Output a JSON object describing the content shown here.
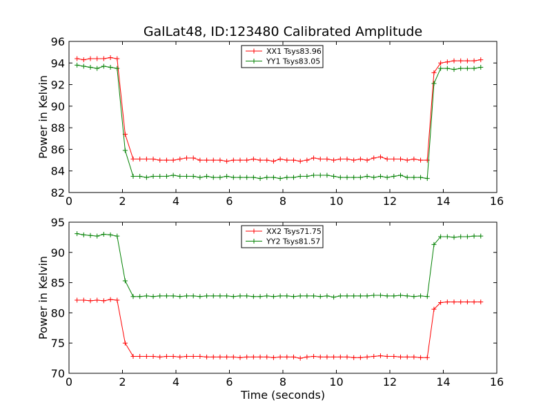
{
  "chart_data": [
    {
      "type": "line",
      "title": "GalLat48, ID:123480 Calibrated Amplitude",
      "xlabel": "",
      "ylabel": "Power in Kelvin",
      "xlim": [
        0,
        16
      ],
      "ylim": [
        82,
        96
      ],
      "xticks": [
        0,
        2,
        4,
        6,
        8,
        10,
        12,
        14,
        16
      ],
      "xtick_labels": [
        "0",
        "2",
        "4",
        "6",
        "8",
        "10",
        "12",
        "14",
        "16"
      ],
      "yticks": [
        82,
        84,
        86,
        88,
        90,
        92,
        94,
        96
      ],
      "ytick_labels": [
        "82",
        "84",
        "86",
        "88",
        "90",
        "92",
        "94",
        "96"
      ],
      "legend_position": "top-center",
      "x": [
        0.3,
        0.55,
        0.8,
        1.05,
        1.3,
        1.55,
        1.8,
        2.1,
        2.4,
        2.65,
        2.9,
        3.15,
        3.4,
        3.65,
        3.9,
        4.15,
        4.4,
        4.65,
        4.9,
        5.15,
        5.4,
        5.65,
        5.9,
        6.15,
        6.4,
        6.65,
        6.9,
        7.15,
        7.4,
        7.65,
        7.9,
        8.15,
        8.4,
        8.65,
        8.9,
        9.15,
        9.4,
        9.65,
        9.9,
        10.15,
        10.4,
        10.65,
        10.9,
        11.15,
        11.4,
        11.65,
        11.9,
        12.15,
        12.4,
        12.65,
        12.9,
        13.15,
        13.4,
        13.65,
        13.9,
        14.15,
        14.4,
        14.65,
        14.9,
        15.15,
        15.4
      ],
      "series": [
        {
          "name": "XX1 Tsys83.96",
          "color": "#ff0000",
          "values": [
            94.4,
            94.3,
            94.4,
            94.4,
            94.4,
            94.5,
            94.4,
            87.4,
            85.1,
            85.1,
            85.1,
            85.1,
            85.0,
            85.0,
            85.0,
            85.1,
            85.2,
            85.2,
            85.0,
            85.0,
            85.0,
            85.0,
            84.9,
            85.0,
            85.0,
            85.0,
            85.1,
            85.0,
            85.0,
            84.9,
            85.1,
            85.0,
            85.0,
            84.9,
            85.0,
            85.2,
            85.1,
            85.1,
            85.0,
            85.1,
            85.1,
            85.0,
            85.1,
            85.0,
            85.2,
            85.3,
            85.1,
            85.1,
            85.1,
            85.0,
            85.1,
            85.0,
            85.0,
            93.1,
            94.0,
            94.1,
            94.2,
            94.2,
            94.2,
            94.2,
            94.3
          ]
        },
        {
          "name": "YY1 Tsys83.05",
          "color": "#008000",
          "values": [
            93.8,
            93.7,
            93.6,
            93.5,
            93.7,
            93.6,
            93.5,
            85.9,
            83.5,
            83.5,
            83.4,
            83.5,
            83.5,
            83.5,
            83.6,
            83.5,
            83.5,
            83.5,
            83.4,
            83.5,
            83.4,
            83.4,
            83.5,
            83.4,
            83.4,
            83.4,
            83.4,
            83.3,
            83.4,
            83.4,
            83.3,
            83.4,
            83.4,
            83.5,
            83.5,
            83.6,
            83.6,
            83.6,
            83.5,
            83.4,
            83.4,
            83.4,
            83.4,
            83.5,
            83.4,
            83.5,
            83.4,
            83.5,
            83.6,
            83.4,
            83.4,
            83.4,
            83.3,
            92.1,
            93.5,
            93.5,
            93.4,
            93.5,
            93.5,
            93.5,
            93.6
          ]
        }
      ]
    },
    {
      "type": "line",
      "title": "",
      "xlabel": "Time (seconds)",
      "ylabel": "Power in Kelvin",
      "xlim": [
        0,
        16
      ],
      "ylim": [
        70,
        95
      ],
      "xticks": [
        0,
        2,
        4,
        6,
        8,
        10,
        12,
        14,
        16
      ],
      "xtick_labels": [
        "0",
        "2",
        "4",
        "6",
        "8",
        "10",
        "12",
        "14",
        "16"
      ],
      "yticks": [
        70,
        75,
        80,
        85,
        90,
        95
      ],
      "ytick_labels": [
        "70",
        "75",
        "80",
        "85",
        "90",
        "95"
      ],
      "legend_position": "top-center",
      "x": [
        0.3,
        0.55,
        0.8,
        1.05,
        1.3,
        1.55,
        1.8,
        2.1,
        2.4,
        2.65,
        2.9,
        3.15,
        3.4,
        3.65,
        3.9,
        4.15,
        4.4,
        4.65,
        4.9,
        5.15,
        5.4,
        5.65,
        5.9,
        6.15,
        6.4,
        6.65,
        6.9,
        7.15,
        7.4,
        7.65,
        7.9,
        8.15,
        8.4,
        8.65,
        8.9,
        9.15,
        9.4,
        9.65,
        9.9,
        10.15,
        10.4,
        10.65,
        10.9,
        11.15,
        11.4,
        11.65,
        11.9,
        12.15,
        12.4,
        12.65,
        12.9,
        13.15,
        13.4,
        13.65,
        13.9,
        14.15,
        14.4,
        14.65,
        14.9,
        15.15,
        15.4
      ],
      "series": [
        {
          "name": "XX2 Tsys71.75",
          "color": "#ff0000",
          "values": [
            82.1,
            82.1,
            82.0,
            82.1,
            82.0,
            82.2,
            82.1,
            75.0,
            72.8,
            72.8,
            72.8,
            72.8,
            72.7,
            72.8,
            72.8,
            72.7,
            72.8,
            72.8,
            72.8,
            72.7,
            72.7,
            72.7,
            72.7,
            72.7,
            72.6,
            72.7,
            72.7,
            72.7,
            72.7,
            72.6,
            72.7,
            72.7,
            72.7,
            72.5,
            72.7,
            72.8,
            72.7,
            72.7,
            72.7,
            72.7,
            72.7,
            72.6,
            72.6,
            72.7,
            72.8,
            72.9,
            72.8,
            72.8,
            72.7,
            72.7,
            72.7,
            72.6,
            72.6,
            80.6,
            81.7,
            81.8,
            81.8,
            81.8,
            81.8,
            81.8,
            81.8
          ]
        },
        {
          "name": "YY2 Tsys81.57",
          "color": "#008000",
          "values": [
            93.1,
            92.9,
            92.8,
            92.7,
            93.0,
            92.9,
            92.7,
            85.3,
            82.7,
            82.7,
            82.8,
            82.7,
            82.8,
            82.8,
            82.8,
            82.7,
            82.8,
            82.8,
            82.7,
            82.8,
            82.8,
            82.8,
            82.8,
            82.7,
            82.8,
            82.8,
            82.7,
            82.7,
            82.8,
            82.7,
            82.8,
            82.8,
            82.7,
            82.8,
            82.8,
            82.8,
            82.7,
            82.8,
            82.6,
            82.8,
            82.8,
            82.8,
            82.8,
            82.8,
            82.9,
            82.9,
            82.8,
            82.8,
            82.9,
            82.8,
            82.7,
            82.8,
            82.7,
            91.3,
            92.6,
            92.6,
            92.5,
            92.6,
            92.6,
            92.7,
            92.7
          ]
        }
      ]
    }
  ]
}
